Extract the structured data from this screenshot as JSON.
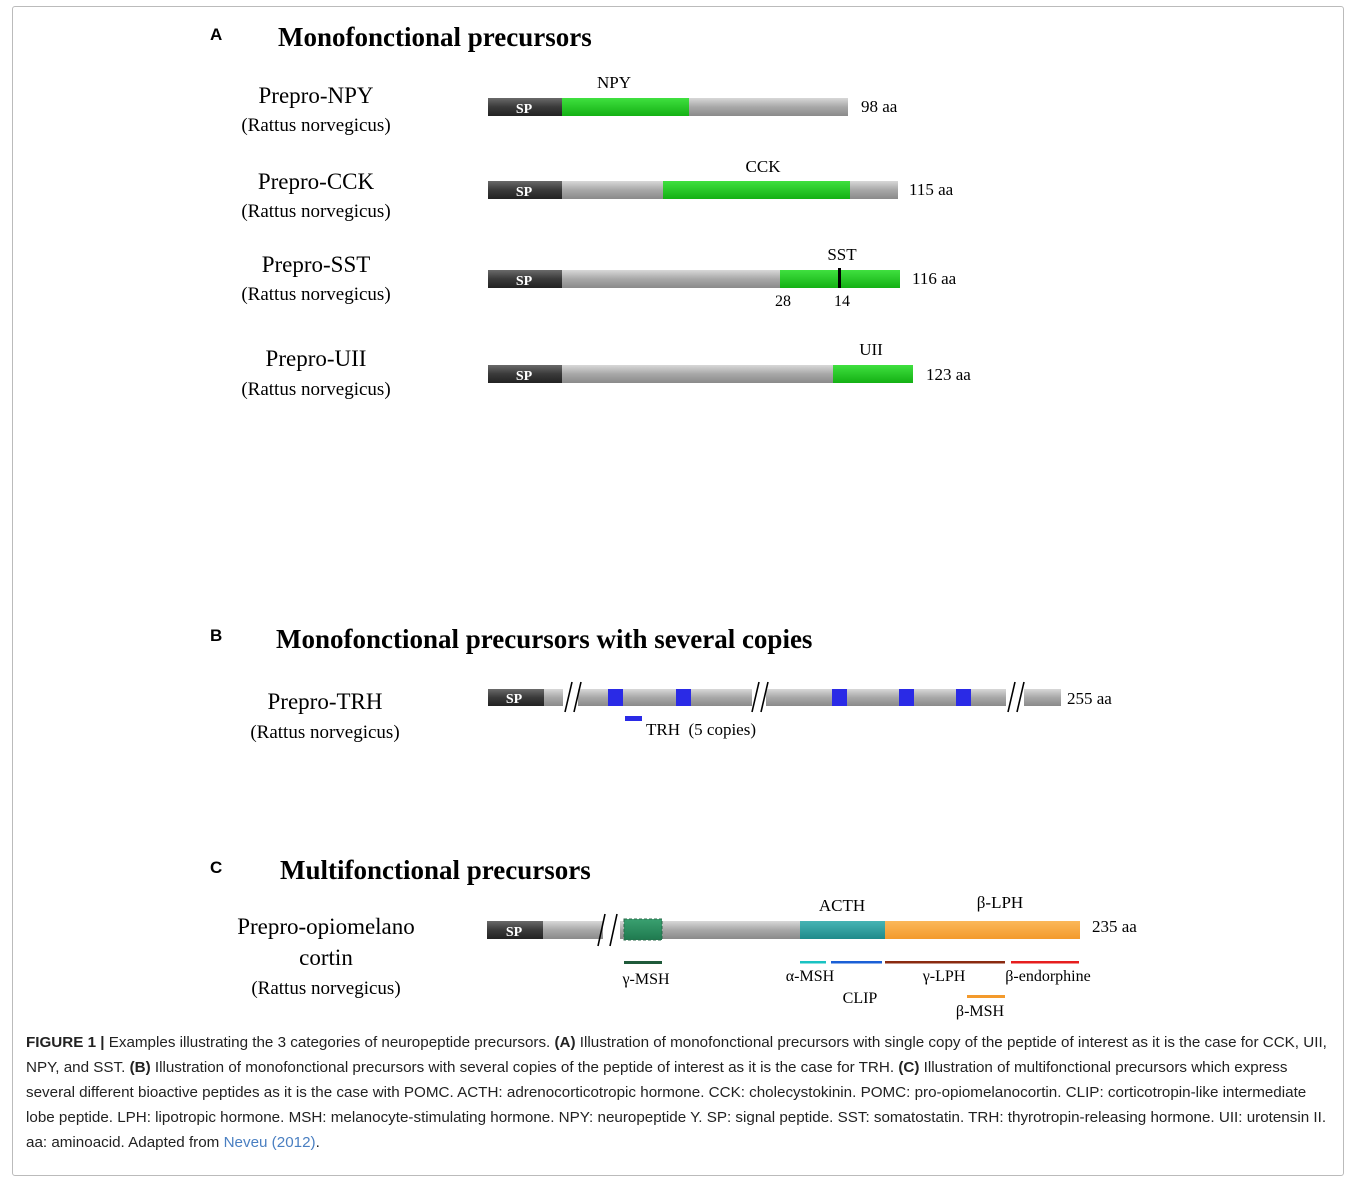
{
  "colors": {
    "signal_peptide": "#3a3a3a",
    "backbone_gray": "#a9a9a9",
    "peptide_green": "#1ec31e",
    "trh_blue": "#2a2ae6",
    "gamma_msh_green": "#2d8a5e",
    "acth_teal": "#2a9a9a",
    "lph_orange": "#f7a23b",
    "link": "#4a7fc1"
  },
  "panel_a": {
    "letter": "A",
    "title": "Monofonctional precursors",
    "precursors": [
      {
        "name": "Prepro-NPY",
        "species": "(Rattus norvegicus)",
        "sp": "SP",
        "peptide": "NPY",
        "length": "98 aa"
      },
      {
        "name": "Prepro-CCK",
        "species": "(Rattus norvegicus)",
        "sp": "SP",
        "peptide": "CCK",
        "length": "115 aa"
      },
      {
        "name": "Prepro-SST",
        "species": "(Rattus norvegicus)",
        "sp": "SP",
        "peptide": "SST",
        "length": "116 aa",
        "marks": [
          "28",
          "14"
        ]
      },
      {
        "name": "Prepro-UII",
        "species": "(Rattus norvegicus)",
        "sp": "SP",
        "peptide": "UII",
        "length": "123 aa"
      }
    ]
  },
  "panel_b": {
    "letter": "B",
    "title": "Monofonctional precursors with several copies",
    "name": "Prepro-TRH",
    "species": "(Rattus norvegicus)",
    "sp": "SP",
    "length": "255 aa",
    "legend": "TRH  (5 copies)"
  },
  "panel_c": {
    "letter": "C",
    "title": "Multifonctional precursors",
    "name_line1": "Prepro-opiomelano",
    "name_line2": "cortin",
    "species": "(Rattus norvegicus)",
    "sp": "SP",
    "length": "235 aa",
    "acth": "ACTH",
    "beta_lph": "β-LPH",
    "gamma_msh": "γ-MSH",
    "alpha_msh": "α-MSH",
    "clip": "CLIP",
    "gamma_lph": "γ-LPH",
    "beta_endorphine": "β-endorphine",
    "beta_msh": "β-MSH"
  },
  "caption": {
    "label": "FIGURE 1 |",
    "intro": " Examples illustrating the 3 categories of neuropeptide precursors. ",
    "a_label": "(A)",
    "a_text": " Illustration of monofonctional precursors with single copy of the peptide of interest as it is the case for CCK, UII, NPY, and SST. ",
    "b_label": "(B)",
    "b_text": " Illustration of monofonctional precursors with several copies of the peptide of interest as it is the case for TRH. ",
    "c_label": "(C)",
    "c_text": " Illustration of multifonctional precursors which express several different bioactive peptides as it is the case with POMC. ACTH: adrenocorticotropic hormone. CCK: cholecystokinin. POMC: pro-opiomelanocortin. CLIP: corticotropin-like intermediate lobe peptide. LPH: lipotropic hormone. MSH: melanocyte-stimulating hormone. NPY: neuropeptide Y. SP: signal peptide. SST: somatostatin. TRH: thyrotropin-releasing hormone. UII: urotensin II. aa: aminoacid. Adapted from ",
    "ref": "Neveu (2012)",
    "end": "."
  }
}
